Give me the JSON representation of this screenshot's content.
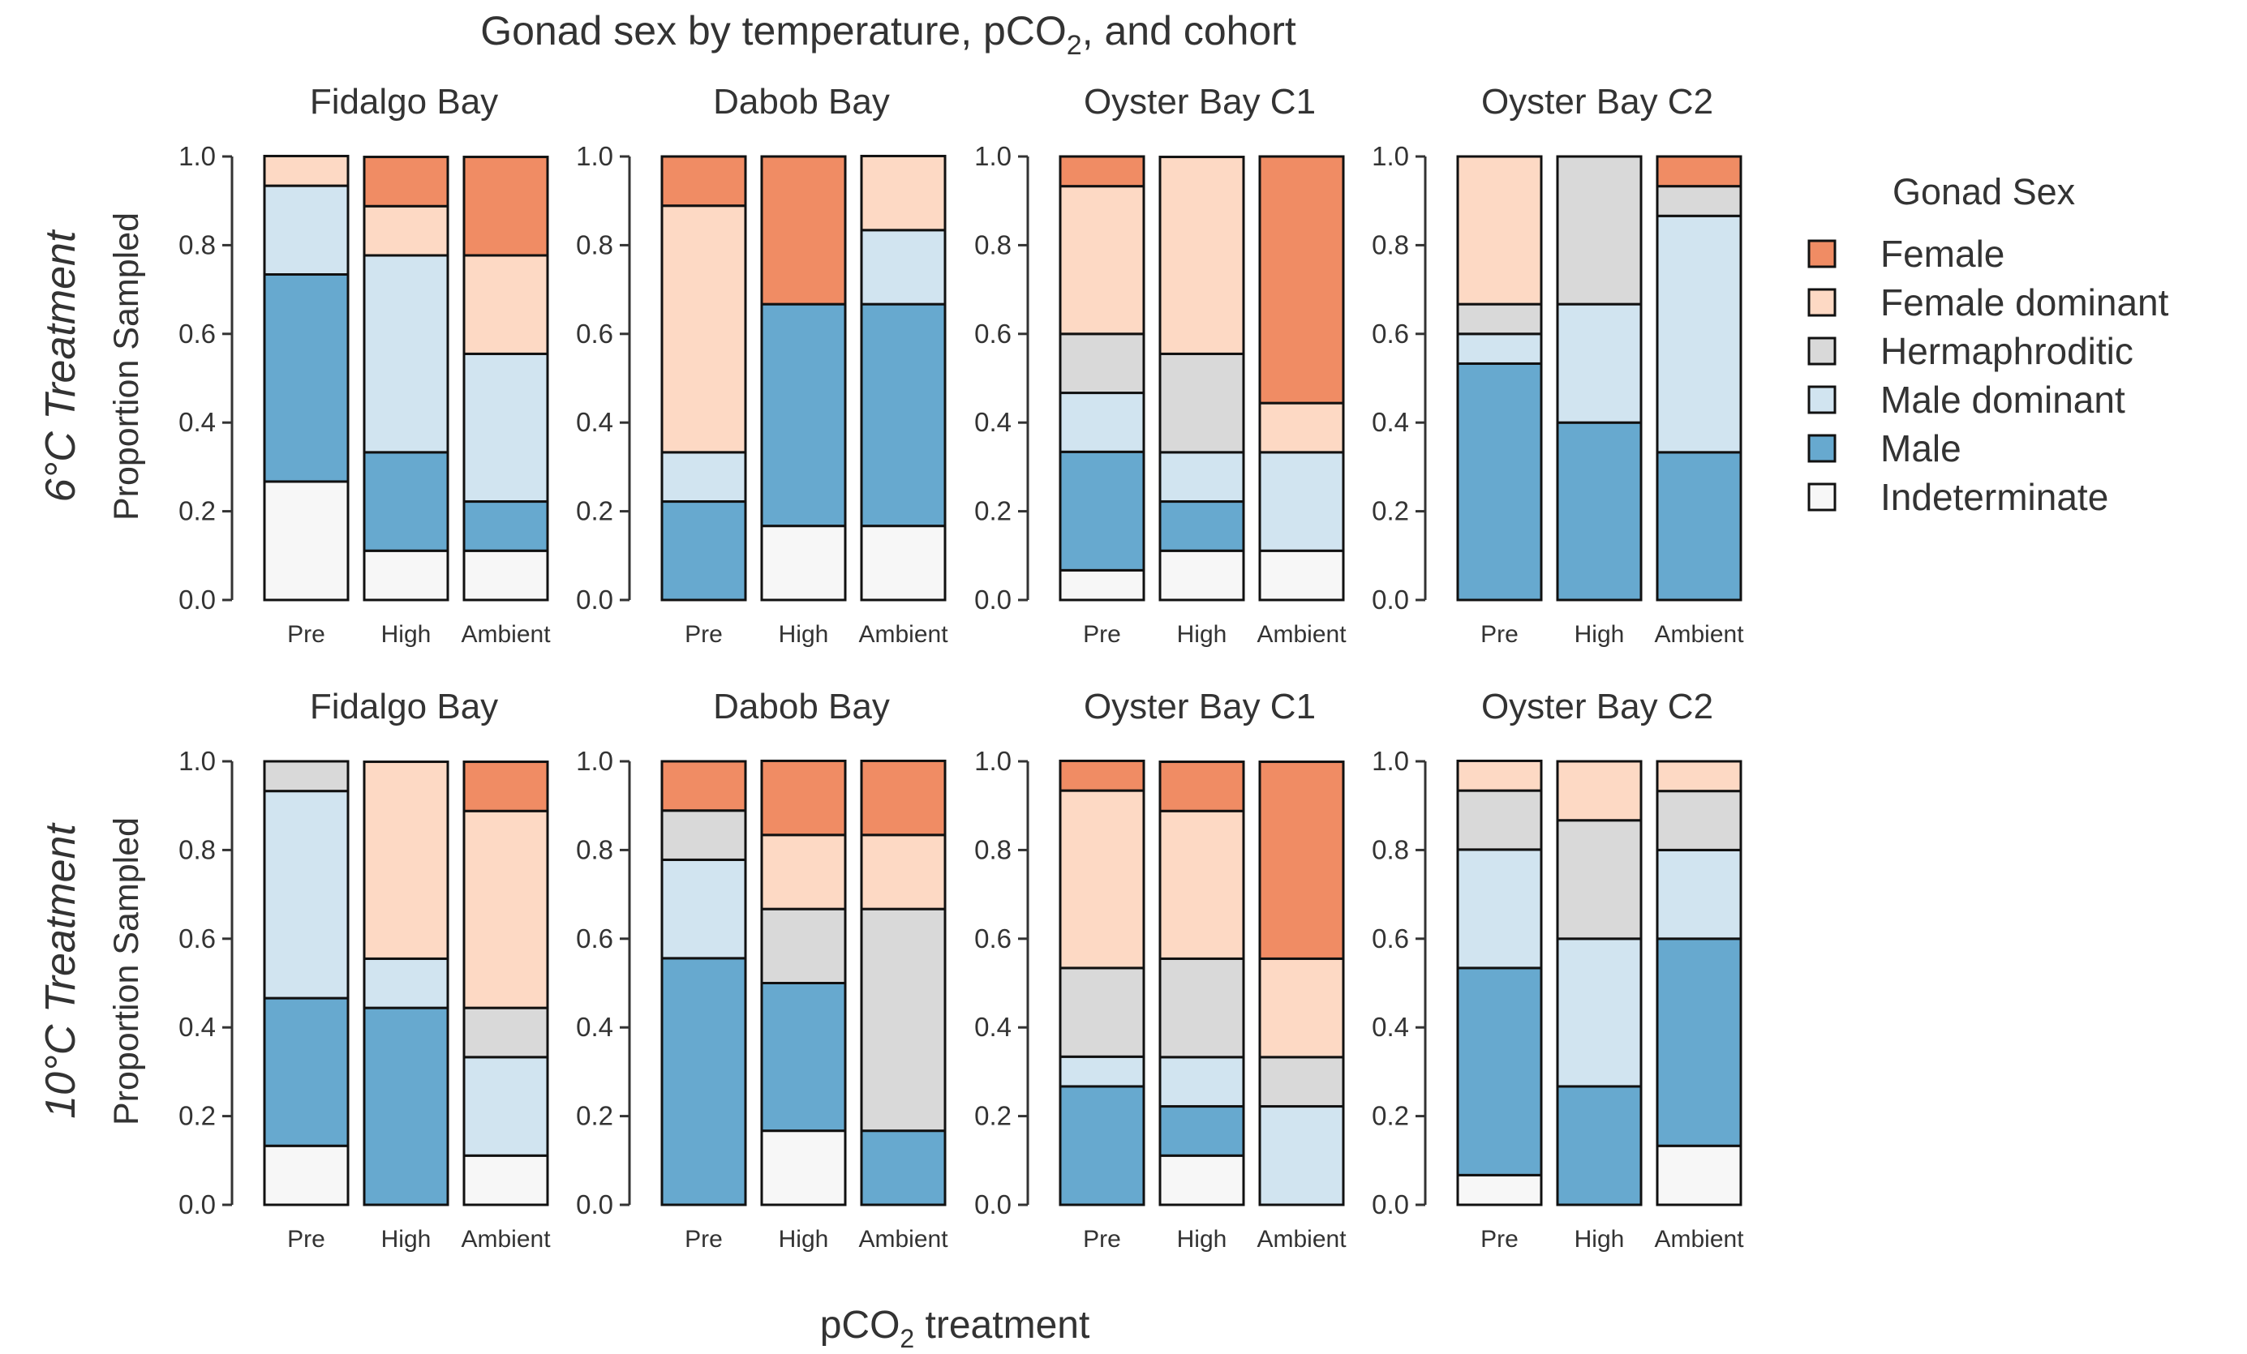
{
  "chart_data": {
    "type": "bar",
    "stacked": true,
    "title_parts": [
      "Gonad sex by temperature, pCO",
      "2",
      ", and cohort"
    ],
    "xlabel_parts": [
      "pCO",
      "2",
      " treatment"
    ],
    "ylabel": "Proportion Sampled",
    "ylim": [
      0,
      1
    ],
    "yticks": [
      "0.0",
      "0.2",
      "0.4",
      "0.6",
      "0.8",
      "1.0"
    ],
    "categories": [
      "Pre",
      "High",
      "Ambient"
    ],
    "legend": {
      "title": "Gonad Sex",
      "placement": "right",
      "entries": [
        {
          "label": "Female",
          "color": "#f08c64"
        },
        {
          "label": "Female dominant",
          "color": "#fdd9c4"
        },
        {
          "label": "Hermaphroditic",
          "color": "#d9d9d9"
        },
        {
          "label": "Male dominant",
          "color": "#d1e4f0"
        },
        {
          "label": "Male",
          "color": "#67a9cf"
        },
        {
          "label": "Indeterminate",
          "color": "#f7f7f7"
        }
      ]
    },
    "stack_order_bottom_to_top": [
      "Indeterminate",
      "Male",
      "Male dominant",
      "Hermaphroditic",
      "Female dominant",
      "Female"
    ],
    "rows": [
      {
        "label": "6°C Treatment",
        "panels": [
          {
            "title": "Fidalgo Bay",
            "bars": [
              {
                "category": "Pre",
                "values": {
                  "Indeterminate": 0.267,
                  "Male": 0.467,
                  "Male dominant": 0.2,
                  "Hermaphroditic": 0,
                  "Female dominant": 0.067,
                  "Female": 0
                }
              },
              {
                "category": "High",
                "values": {
                  "Indeterminate": 0.111,
                  "Male": 0.222,
                  "Male dominant": 0.444,
                  "Hermaphroditic": 0,
                  "Female dominant": 0.111,
                  "Female": 0.111
                }
              },
              {
                "category": "Ambient",
                "values": {
                  "Indeterminate": 0.111,
                  "Male": 0.111,
                  "Male dominant": 0.333,
                  "Hermaphroditic": 0,
                  "Female dominant": 0.222,
                  "Female": 0.222
                }
              }
            ]
          },
          {
            "title": "Dabob Bay",
            "bars": [
              {
                "category": "Pre",
                "values": {
                  "Indeterminate": 0,
                  "Male": 0.222,
                  "Male dominant": 0.111,
                  "Hermaphroditic": 0,
                  "Female dominant": 0.556,
                  "Female": 0.111
                }
              },
              {
                "category": "High",
                "values": {
                  "Indeterminate": 0.167,
                  "Male": 0.5,
                  "Male dominant": 0,
                  "Hermaphroditic": 0,
                  "Female dominant": 0,
                  "Female": 0.333
                }
              },
              {
                "category": "Ambient",
                "values": {
                  "Indeterminate": 0.167,
                  "Male": 0.5,
                  "Male dominant": 0.167,
                  "Hermaphroditic": 0,
                  "Female dominant": 0.167,
                  "Female": 0
                }
              }
            ]
          },
          {
            "title": "Oyster Bay C1",
            "bars": [
              {
                "category": "Pre",
                "values": {
                  "Indeterminate": 0.067,
                  "Male": 0.267,
                  "Male dominant": 0.133,
                  "Hermaphroditic": 0.133,
                  "Female dominant": 0.333,
                  "Female": 0.067
                }
              },
              {
                "category": "High",
                "values": {
                  "Indeterminate": 0.111,
                  "Male": 0.111,
                  "Male dominant": 0.111,
                  "Hermaphroditic": 0.222,
                  "Female dominant": 0.444,
                  "Female": 0
                }
              },
              {
                "category": "Ambient",
                "values": {
                  "Indeterminate": 0.111,
                  "Male": 0,
                  "Male dominant": 0.222,
                  "Hermaphroditic": 0,
                  "Female dominant": 0.111,
                  "Female": 0.556
                }
              }
            ]
          },
          {
            "title": "Oyster Bay  C2",
            "bars": [
              {
                "category": "Pre",
                "values": {
                  "Indeterminate": 0,
                  "Male": 0.533,
                  "Male dominant": 0.067,
                  "Hermaphroditic": 0.067,
                  "Female dominant": 0.333,
                  "Female": 0
                }
              },
              {
                "category": "High",
                "values": {
                  "Indeterminate": 0,
                  "Male": 0.4,
                  "Male dominant": 0.267,
                  "Hermaphroditic": 0.333,
                  "Female dominant": 0,
                  "Female": 0
                }
              },
              {
                "category": "Ambient",
                "values": {
                  "Indeterminate": 0,
                  "Male": 0.333,
                  "Male dominant": 0.533,
                  "Hermaphroditic": 0.067,
                  "Female dominant": 0,
                  "Female": 0.067
                }
              }
            ]
          }
        ]
      },
      {
        "label": "10°C Treatment",
        "panels": [
          {
            "title": "Fidalgo Bay",
            "bars": [
              {
                "category": "Pre",
                "values": {
                  "Indeterminate": 0.133,
                  "Male": 0.333,
                  "Male dominant": 0.467,
                  "Hermaphroditic": 0.067,
                  "Female dominant": 0,
                  "Female": 0
                }
              },
              {
                "category": "High",
                "values": {
                  "Indeterminate": 0,
                  "Male": 0.444,
                  "Male dominant": 0.111,
                  "Hermaphroditic": 0,
                  "Female dominant": 0.444,
                  "Female": 0
                }
              },
              {
                "category": "Ambient",
                "values": {
                  "Indeterminate": 0.111,
                  "Male": 0,
                  "Male dominant": 0.222,
                  "Hermaphroditic": 0.111,
                  "Female dominant": 0.444,
                  "Female": 0.111
                }
              }
            ]
          },
          {
            "title": "Dabob Bay",
            "bars": [
              {
                "category": "Pre",
                "values": {
                  "Indeterminate": 0,
                  "Male": 0.556,
                  "Male dominant": 0.222,
                  "Hermaphroditic": 0.111,
                  "Female dominant": 0,
                  "Female": 0.111
                }
              },
              {
                "category": "High",
                "values": {
                  "Indeterminate": 0.167,
                  "Male": 0.333,
                  "Male dominant": 0,
                  "Hermaphroditic": 0.167,
                  "Female dominant": 0.167,
                  "Female": 0.167
                }
              },
              {
                "category": "Ambient",
                "values": {
                  "Indeterminate": 0,
                  "Male": 0.167,
                  "Male dominant": 0,
                  "Hermaphroditic": 0.5,
                  "Female dominant": 0.167,
                  "Female": 0.167
                }
              }
            ]
          },
          {
            "title": "Oyster Bay C1",
            "bars": [
              {
                "category": "Pre",
                "values": {
                  "Indeterminate": 0,
                  "Male": 0.267,
                  "Male dominant": 0.067,
                  "Hermaphroditic": 0.2,
                  "Female dominant": 0.4,
                  "Female": 0.067
                }
              },
              {
                "category": "High",
                "values": {
                  "Indeterminate": 0.111,
                  "Male": 0.111,
                  "Male dominant": 0.111,
                  "Hermaphroditic": 0.222,
                  "Female dominant": 0.333,
                  "Female": 0.111
                }
              },
              {
                "category": "Ambient",
                "values": {
                  "Indeterminate": 0,
                  "Male": 0,
                  "Male dominant": 0.222,
                  "Hermaphroditic": 0.111,
                  "Female dominant": 0.222,
                  "Female": 0.444
                }
              }
            ]
          },
          {
            "title": "Oyster Bay  C2",
            "bars": [
              {
                "category": "Pre",
                "values": {
                  "Indeterminate": 0.067,
                  "Male": 0.467,
                  "Male dominant": 0.267,
                  "Hermaphroditic": 0.133,
                  "Female dominant": 0.067,
                  "Female": 0
                }
              },
              {
                "category": "High",
                "values": {
                  "Indeterminate": 0,
                  "Male": 0.267,
                  "Male dominant": 0.333,
                  "Hermaphroditic": 0.267,
                  "Female dominant": 0.133,
                  "Female": 0
                }
              },
              {
                "category": "Ambient",
                "values": {
                  "Indeterminate": 0.133,
                  "Male": 0.467,
                  "Male dominant": 0.2,
                  "Hermaphroditic": 0.133,
                  "Female dominant": 0.067,
                  "Female": 0
                }
              }
            ]
          }
        ]
      }
    ]
  }
}
